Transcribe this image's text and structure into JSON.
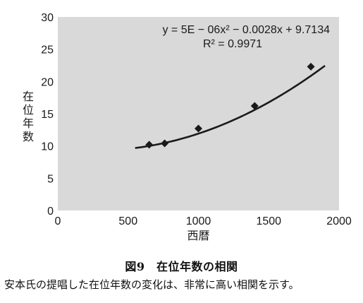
{
  "chart_data": {
    "type": "scatter",
    "xlabel": "西暦",
    "ylabel": "在位年数",
    "xlim": [
      0,
      2000
    ],
    "ylim": [
      0,
      30
    ],
    "xticks": [
      0,
      500,
      1000,
      1500,
      2000
    ],
    "yticks": [
      0,
      5,
      10,
      15,
      20,
      25,
      30
    ],
    "grid": false,
    "background_color": "#d9d9d9",
    "marker_color": "#1a1a1a",
    "line_color": "#1a1a1a",
    "points": [
      {
        "x": 650,
        "y": 10.2
      },
      {
        "x": 760,
        "y": 10.4
      },
      {
        "x": 1000,
        "y": 12.7
      },
      {
        "x": 1400,
        "y": 16.2
      },
      {
        "x": 1800,
        "y": 22.3
      }
    ],
    "trendline": {
      "type": "polynomial",
      "coefficients": [
        5e-06,
        -0.0028,
        9.7134
      ],
      "x_range": [
        550,
        1900
      ]
    },
    "annotations": {
      "equation": "y = 5E − 06x² − 0.0028x + 9.7134",
      "r_squared": "R² = 0.9971"
    }
  },
  "caption": {
    "title": "図9　在位年数の相関",
    "text": "安本氏の提唱した在位年数の変化は、非常に高い相関を示す。"
  }
}
